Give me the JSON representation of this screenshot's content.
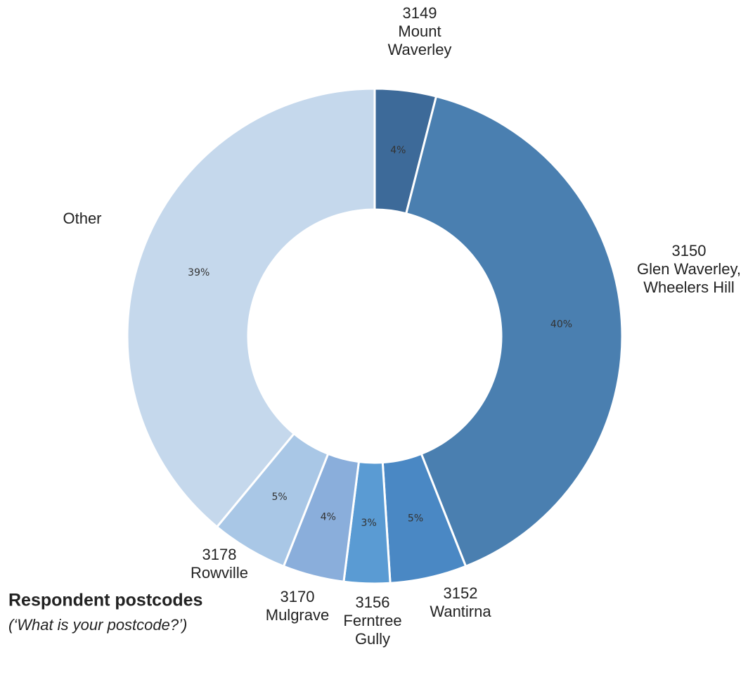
{
  "chart_data": {
    "type": "donut",
    "title": "Respondent postcodes",
    "subtitle": "(‘What is your postcode?’)",
    "categories": [
      "3149\nMount\nWaverley",
      "3150\nGlen Waverley,\nWheelers Hill",
      "3152\nWantirna",
      "3156\nFerntree\nGully",
      "3170\nMulgrave",
      "3178\nRowville",
      "Other"
    ],
    "values": [
      4,
      40,
      5,
      3,
      4,
      5,
      39
    ],
    "value_labels": [
      "4%",
      "40%",
      "5%",
      "3%",
      "4%",
      "5%",
      "39%"
    ],
    "colors": [
      "#3d6a99",
      "#4a7fb0",
      "#4a88c4",
      "#5a9bd3",
      "#8aaedb",
      "#a9c7e6",
      "#c5d8ec"
    ]
  }
}
